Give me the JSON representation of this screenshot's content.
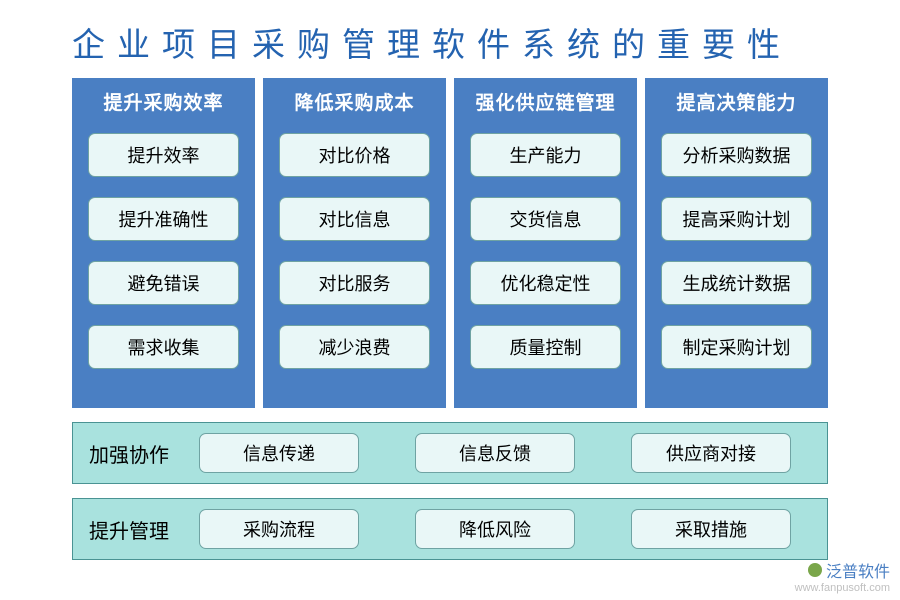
{
  "title": "企业项目采购管理软件系统的重要性",
  "columns": [
    {
      "header": "提升采购效率",
      "items": [
        "提升效率",
        "提升准确性",
        "避免错误",
        "需求收集"
      ]
    },
    {
      "header": "降低采购成本",
      "items": [
        "对比价格",
        "对比信息",
        "对比服务",
        "减少浪费"
      ]
    },
    {
      "header": "强化供应链管理",
      "items": [
        "生产能力",
        "交货信息",
        "优化稳定性",
        "质量控制"
      ]
    },
    {
      "header": "提高决策能力",
      "items": [
        "分析采购数据",
        "提高采购计划",
        "生成统计数据",
        "制定采购计划"
      ]
    }
  ],
  "rows": [
    {
      "label": "加强协作",
      "items": [
        "信息传递",
        "信息反馈",
        "供应商对接"
      ]
    },
    {
      "label": "提升管理",
      "items": [
        "采购流程",
        "降低风险",
        "采取措施"
      ]
    }
  ],
  "watermark": {
    "brand": "泛普软件",
    "url": "www.fanpusoft.com"
  },
  "style": {
    "title_color": "#2463b0",
    "title_fontsize": 33,
    "col_bg": "#4a7fc3",
    "col_header_color": "#ffffff",
    "col_header_fontsize": 19,
    "item_bg": "#e9f7f7",
    "item_border": "#6fa3a3",
    "item_fontsize": 18,
    "item_radius": 7,
    "row_bg": "#a9e2de",
    "row_border": "#4a9393",
    "row_label_fontsize": 20,
    "page_bg": "#ffffff",
    "wm_brand_color": "#4a7fc3",
    "wm_url_color": "#c0c0c0",
    "wm_icon_color": "#7aa64a"
  }
}
